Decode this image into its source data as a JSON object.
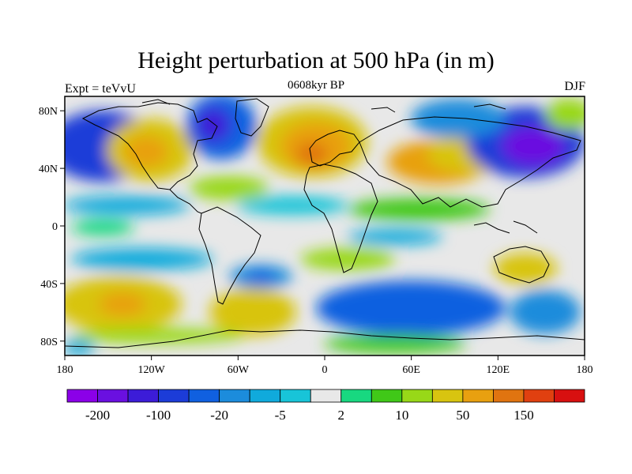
{
  "title": "Height perturbation at 500 hPa (in m)",
  "subtitle_left": "Expt = teVvU",
  "subtitle_center": "0608kyr BP",
  "subtitle_right": "DJF",
  "map": {
    "lon_range": [
      -180,
      180
    ],
    "lat_range": [
      -90,
      90
    ],
    "lon_ticks": [
      {
        "value": -180,
        "label": "180"
      },
      {
        "value": -120,
        "label": "120W"
      },
      {
        "value": -60,
        "label": "60W"
      },
      {
        "value": 0,
        "label": "0"
      },
      {
        "value": 60,
        "label": "60E"
      },
      {
        "value": 120,
        "label": "120E"
      },
      {
        "value": 180,
        "label": "180"
      }
    ],
    "lat_ticks": [
      {
        "value": 80,
        "label": "80N"
      },
      {
        "value": 40,
        "label": "40N"
      },
      {
        "value": 0,
        "label": "0"
      },
      {
        "value": -40,
        "label": "40S"
      },
      {
        "value": -80,
        "label": "80S"
      }
    ]
  },
  "colorbar": {
    "colors": [
      "#8b00e8",
      "#6a10e0",
      "#3c1cd8",
      "#1c3cd8",
      "#1060e0",
      "#1c8cdc",
      "#10aadc",
      "#18c4d8",
      "#e8e8e8",
      "#18d880",
      "#40c818",
      "#98d818",
      "#d8c410",
      "#e8a010",
      "#e07410",
      "#e04010",
      "#d81010"
    ],
    "labels": [
      {
        "boundary": 1,
        "text": "-200"
      },
      {
        "boundary": 3,
        "text": "-100"
      },
      {
        "boundary": 5,
        "text": "-20"
      },
      {
        "boundary": 7,
        "text": "-5"
      },
      {
        "boundary": 9,
        "text": "2"
      },
      {
        "boundary": 11,
        "text": "10"
      },
      {
        "boundary": 13,
        "text": "50"
      },
      {
        "boundary": 15,
        "text": "150"
      }
    ]
  }
}
